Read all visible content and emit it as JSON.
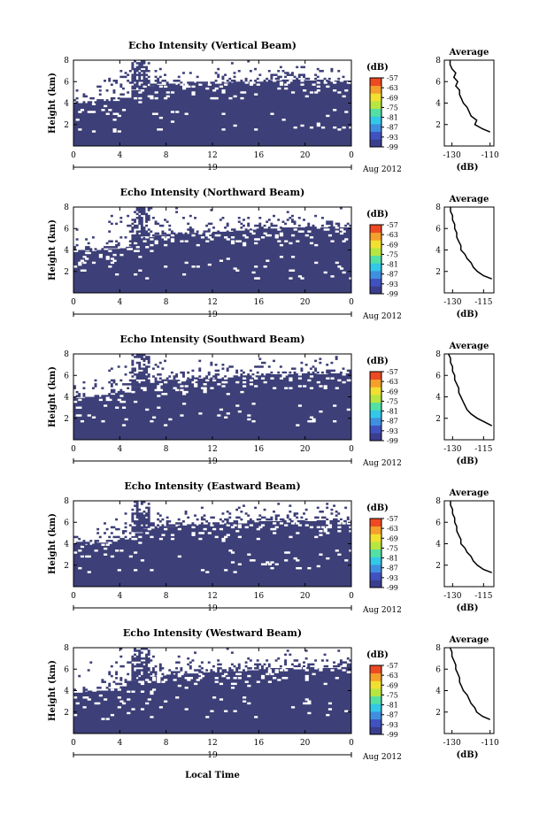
{
  "figure": {
    "xlabel": "Local Time",
    "x_ticks": [
      "0",
      "4",
      "8",
      "12",
      "16",
      "20",
      "0"
    ],
    "date_tick": "19",
    "date_label": "Aug 2012",
    "ylabel": "Height (km)",
    "y_ticks": [
      "2",
      "4",
      "6",
      "8"
    ],
    "colorbar_title": "(dB)",
    "colorbar_ticks": [
      "-57",
      "-63",
      "-69",
      "-75",
      "-81",
      "-87",
      "-93",
      "-99"
    ],
    "profile_title": "Average",
    "profile_xlabel": "(dB)"
  },
  "colors": {
    "background": "#ffffff",
    "echo_fill": "#3d3f78",
    "colormap": [
      "#3a3e8c",
      "#4052c0",
      "#3f8fe0",
      "#32c8e8",
      "#53e0a4",
      "#b8e640",
      "#f2e030",
      "#f5a02a",
      "#ee4a22"
    ]
  },
  "chart_data": [
    {
      "type": "heatmap",
      "title": "Echo Intensity (Vertical Beam)",
      "x_range_hours": [
        0,
        24
      ],
      "y_range_km": [
        0,
        8
      ],
      "solid_top_km": [
        4.0,
        4.0,
        4.2,
        4.2,
        4.5,
        5.2,
        5.6,
        5.7,
        5.7,
        5.8,
        5.9,
        5.8,
        5.8,
        5.9,
        6.0,
        6.0,
        6.0,
        6.1,
        6.2,
        6.2,
        6.1,
        6.0,
        6.1,
        6.1
      ],
      "profile": {
        "x_ticks": [
          "-130",
          "-110"
        ],
        "xlim": [
          -134,
          -108
        ],
        "heights_km": [
          1.3,
          1.6,
          2.0,
          2.4,
          2.8,
          3.2,
          3.6,
          4.0,
          4.4,
          4.8,
          5.2,
          5.6,
          6.0,
          6.4,
          6.8,
          7.2,
          7.6,
          8.0
        ],
        "values_db": [
          -110,
          -114,
          -118,
          -117,
          -120,
          -121,
          -122,
          -124,
          -125,
          -126,
          -126,
          -128,
          -127,
          -129,
          -128,
          -130,
          -131,
          -131
        ]
      }
    },
    {
      "type": "heatmap",
      "title": "Echo Intensity (Northward Beam)",
      "x_range_hours": [
        0,
        24
      ],
      "y_range_km": [
        0,
        8
      ],
      "solid_top_km": [
        3.8,
        3.9,
        4.0,
        4.1,
        4.3,
        4.8,
        5.2,
        5.4,
        5.5,
        5.5,
        5.6,
        5.6,
        5.7,
        5.7,
        5.8,
        5.9,
        6.0,
        6.0,
        6.1,
        6.1,
        6.0,
        6.1,
        6.2,
        6.1
      ],
      "profile": {
        "x_ticks": [
          "-130",
          "-115"
        ],
        "xlim": [
          -134,
          -110
        ],
        "heights_km": [
          1.3,
          1.6,
          2.0,
          2.4,
          2.8,
          3.2,
          3.6,
          4.0,
          4.4,
          4.8,
          5.2,
          5.6,
          6.0,
          6.4,
          6.8,
          7.2,
          7.6,
          8.0
        ],
        "values_db": [
          -111,
          -115,
          -118,
          -120,
          -121,
          -123,
          -124,
          -126,
          -126,
          -127,
          -128,
          -128,
          -129,
          -129,
          -130,
          -130,
          -131,
          -131
        ]
      }
    },
    {
      "type": "heatmap",
      "title": "Echo Intensity (Southward Beam)",
      "x_range_hours": [
        0,
        24
      ],
      "y_range_km": [
        0,
        8
      ],
      "solid_top_km": [
        3.9,
        4.0,
        4.0,
        4.2,
        4.4,
        4.9,
        5.3,
        5.5,
        5.6,
        5.6,
        5.7,
        5.7,
        5.7,
        5.8,
        5.9,
        6.0,
        6.0,
        6.1,
        6.1,
        6.2,
        6.2,
        6.1,
        6.2,
        6.2
      ],
      "profile": {
        "x_ticks": [
          "-130",
          "-115"
        ],
        "xlim": [
          -134,
          -110
        ],
        "heights_km": [
          1.3,
          1.6,
          2.0,
          2.4,
          2.8,
          3.2,
          3.6,
          4.0,
          4.4,
          4.8,
          5.2,
          5.6,
          6.0,
          6.4,
          6.8,
          7.2,
          7.6,
          8.0
        ],
        "values_db": [
          -111,
          -114,
          -118,
          -121,
          -123,
          -124,
          -125,
          -126,
          -127,
          -127,
          -128,
          -129,
          -129,
          -130,
          -130,
          -131,
          -131,
          -132
        ]
      }
    },
    {
      "type": "heatmap",
      "title": "Echo Intensity (Eastward Beam)",
      "x_range_hours": [
        0,
        24
      ],
      "y_range_km": [
        0,
        8
      ],
      "solid_top_km": [
        3.9,
        3.9,
        4.1,
        4.2,
        4.4,
        5.0,
        5.4,
        5.5,
        5.6,
        5.7,
        5.7,
        5.8,
        5.8,
        5.9,
        5.9,
        6.0,
        6.1,
        6.1,
        6.2,
        6.2,
        6.1,
        6.2,
        6.2,
        6.2
      ],
      "profile": {
        "x_ticks": [
          "-130",
          "-115"
        ],
        "xlim": [
          -134,
          -110
        ],
        "heights_km": [
          1.3,
          1.6,
          2.0,
          2.4,
          2.8,
          3.2,
          3.6,
          4.0,
          4.4,
          4.8,
          5.2,
          5.6,
          6.0,
          6.4,
          6.8,
          7.2,
          7.6,
          8.0
        ],
        "values_db": [
          -111,
          -115,
          -118,
          -120,
          -121,
          -123,
          -124,
          -126,
          -126,
          -127,
          -128,
          -128,
          -129,
          -129,
          -130,
          -130,
          -131,
          -131
        ]
      }
    },
    {
      "type": "heatmap",
      "title": "Echo Intensity (Westward Beam)",
      "x_range_hours": [
        0,
        24
      ],
      "y_range_km": [
        0,
        8
      ],
      "solid_top_km": [
        3.8,
        3.9,
        4.0,
        4.2,
        4.4,
        4.9,
        5.3,
        5.4,
        5.5,
        5.6,
        5.6,
        5.7,
        5.7,
        5.8,
        5.8,
        5.9,
        6.0,
        6.1,
        6.1,
        6.2,
        6.2,
        6.1,
        6.1,
        6.2
      ],
      "profile": {
        "x_ticks": [
          "-130",
          "-110"
        ],
        "xlim": [
          -134,
          -108
        ],
        "heights_km": [
          1.3,
          1.6,
          2.0,
          2.4,
          2.8,
          3.2,
          3.6,
          4.0,
          4.4,
          4.8,
          5.2,
          5.6,
          6.0,
          6.4,
          6.8,
          7.2,
          7.6,
          8.0
        ],
        "values_db": [
          -110,
          -114,
          -117,
          -118,
          -120,
          -121,
          -122,
          -124,
          -125,
          -126,
          -126,
          -127,
          -128,
          -128,
          -129,
          -130,
          -130,
          -131
        ]
      }
    }
  ]
}
